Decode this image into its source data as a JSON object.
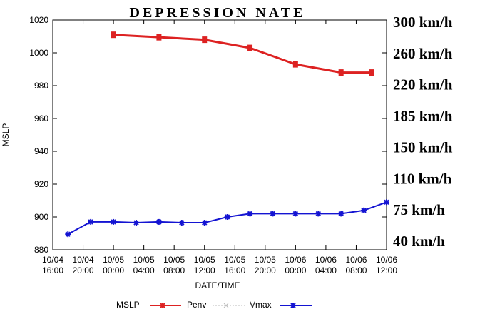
{
  "chart_data": {
    "type": "line",
    "title": "DEPRESSION NATE",
    "xlabel": "DATE/TIME",
    "ylabel": "MSLP",
    "ylim": [
      880,
      1020
    ],
    "y_ticks": [
      880,
      900,
      920,
      940,
      960,
      980,
      1000,
      1020
    ],
    "x_range": [
      "2019-10-04 16:00",
      "2019-10-06 12:00"
    ],
    "x_ticks": [
      {
        "date": "10/04",
        "time": "16:00",
        "x": "2019-10-04 16:00"
      },
      {
        "date": "10/04",
        "time": "20:00",
        "x": "2019-10-04 20:00"
      },
      {
        "date": "10/05",
        "time": "00:00",
        "x": "2019-10-05 00:00"
      },
      {
        "date": "10/05",
        "time": "04:00",
        "x": "2019-10-05 04:00"
      },
      {
        "date": "10/05",
        "time": "08:00",
        "x": "2019-10-05 08:00"
      },
      {
        "date": "10/05",
        "time": "12:00",
        "x": "2019-10-05 12:00"
      },
      {
        "date": "10/05",
        "time": "16:00",
        "x": "2019-10-05 16:00"
      },
      {
        "date": "10/05",
        "time": "20:00",
        "x": "2019-10-05 20:00"
      },
      {
        "date": "10/06",
        "time": "00:00",
        "x": "2019-10-06 00:00"
      },
      {
        "date": "10/06",
        "time": "04:00",
        "x": "2019-10-06 04:00"
      },
      {
        "date": "10/06",
        "time": "08:00",
        "x": "2019-10-06 08:00"
      },
      {
        "date": "10/06",
        "time": "12:00",
        "x": "2019-10-06 12:00"
      }
    ],
    "right_axis_labels": [
      "300 km/h",
      "260 km/h",
      "220 km/h",
      "185 km/h",
      "150 km/h",
      "110 km/h",
      "75 km/h",
      "40 km/h"
    ],
    "legend": {
      "placement": "bottom",
      "title": "MSLP"
    },
    "grid": false,
    "series": [
      {
        "name": "Penv",
        "color": "#dd2222",
        "marker": "plus",
        "points": [
          {
            "x": "2019-10-05 00:00",
            "y": 1011
          },
          {
            "x": "2019-10-05 06:00",
            "y": 1009.5
          },
          {
            "x": "2019-10-05 12:00",
            "y": 1008
          },
          {
            "x": "2019-10-05 18:00",
            "y": 1003
          },
          {
            "x": "2019-10-06 00:00",
            "y": 993
          },
          {
            "x": "2019-10-06 06:00",
            "y": 988
          },
          {
            "x": "2019-10-06 10:00",
            "y": 988
          }
        ]
      },
      {
        "name": "MSLP",
        "color": "#bbbbbb",
        "marker": "cross",
        "dashed": true,
        "points": []
      },
      {
        "name": "Vmax",
        "color": "#1414d2",
        "marker": "star",
        "points": [
          {
            "x": "2019-10-04 18:00",
            "y": 889.5
          },
          {
            "x": "2019-10-04 21:00",
            "y": 897
          },
          {
            "x": "2019-10-05 00:00",
            "y": 897
          },
          {
            "x": "2019-10-05 03:00",
            "y": 896.5
          },
          {
            "x": "2019-10-05 06:00",
            "y": 897
          },
          {
            "x": "2019-10-05 09:00",
            "y": 896.5
          },
          {
            "x": "2019-10-05 12:00",
            "y": 896.5
          },
          {
            "x": "2019-10-05 15:00",
            "y": 900
          },
          {
            "x": "2019-10-05 18:00",
            "y": 902
          },
          {
            "x": "2019-10-05 21:00",
            "y": 902
          },
          {
            "x": "2019-10-06 00:00",
            "y": 902
          },
          {
            "x": "2019-10-06 03:00",
            "y": 902
          },
          {
            "x": "2019-10-06 06:00",
            "y": 902
          },
          {
            "x": "2019-10-06 09:00",
            "y": 904
          },
          {
            "x": "2019-10-06 12:00",
            "y": 909
          }
        ]
      }
    ]
  }
}
